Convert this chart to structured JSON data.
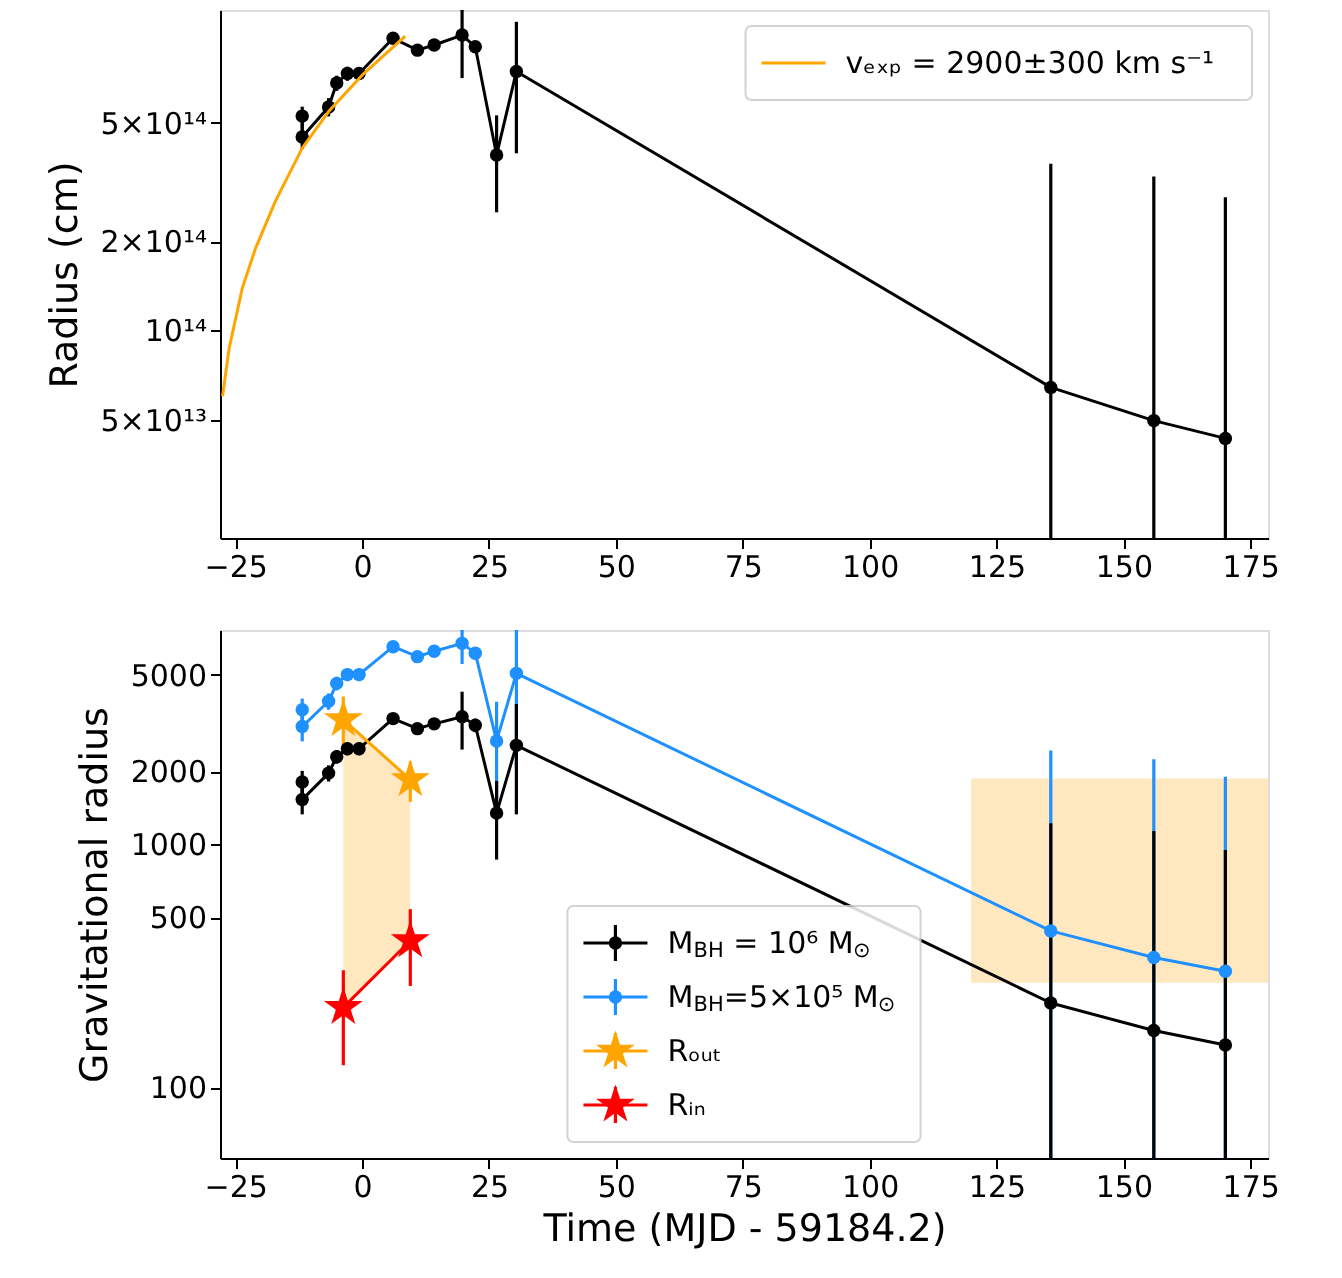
{
  "chart_data": [
    {
      "type": "line",
      "ylabel": "Radius (cm)",
      "xlim": [
        -28,
        178.5
      ],
      "ylim": [
        20000000000000.0,
        1200000000000000.0
      ],
      "log": true,
      "legend": "top right",
      "xticks": [
        -25,
        0,
        25,
        50,
        75,
        100,
        125,
        150,
        175
      ],
      "yticks": [
        {
          "value": 50000000000000.0,
          "label": "5×10¹³"
        },
        {
          "value": 100000000000000.0,
          "label": "10¹⁴"
        },
        {
          "value": 200000000000000.0,
          "label": "2×10¹⁴"
        },
        {
          "value": 500000000000000.0,
          "label": "5×10¹⁴"
        }
      ],
      "series": [
        {
          "type": "line",
          "color": "#000000",
          "marker": "circle",
          "x": [
            -11.8,
            -11.8,
            -6.6,
            -5.0,
            -2.9,
            -0.6,
            6.1,
            10.9,
            14.2,
            19.7,
            22.3,
            26.5,
            30.4,
            135.7,
            156,
            170.1
          ],
          "values": [
            527000000000000.0,
            448000000000000.0,
            566000000000000.0,
            681000000000000.0,
            733000000000000.0,
            733000000000000.0,
            964000000000000.0,
            879000000000000.0,
            915000000000000.0,
            988000000000000.0,
            902000000000000.0,
            390000000000000.0,
            745000000000000.0,
            64300000000000.0,
            49700000000000.0,
            43300000000000.0
          ],
          "errors": [
            40000000000000.0,
            40000000000000.0,
            40000000000000.0,
            40000000000000.0,
            40000000000000.0,
            30000000000000.0,
            30000000000000.0,
            30000000000000.0,
            30000000000000.0,
            [
              708000000000000.0,
              1200000000000000.0
            ],
            30000000000000.0,
            140000000000000.0,
            350000000000000.0,
            [
              20000000000000.0,
              364000000000000.0
            ],
            [
              20000000000000.0,
              330000000000000.0
            ],
            [
              20000000000000.0,
              281000000000000.0
            ]
          ]
        },
        {
          "type": "line",
          "name": "vₑₓₚ = 2900±300 km s⁻¹",
          "color": "#ffa500",
          "marker": "none",
          "x": [
            -27.5,
            -26.2,
            -23.6,
            -21.0,
            -17.1,
            -11.8,
            -6.6,
            0,
            8.5
          ],
          "values": [
            60000000000000.0,
            87000000000000.0,
            139000000000000.0,
            189000000000000.0,
            272000000000000.0,
            411000000000000.0,
            546000000000000.0,
            724000000000000.0,
            980000000000000.0
          ]
        }
      ]
    },
    {
      "type": "line",
      "xlabel": "Time (MJD - 59184.2)",
      "ylabel": "Gravitational radius",
      "xlim": [
        -28,
        178.5
      ],
      "ylim": [
        51,
        7650
      ],
      "log": true,
      "legend": "bottom",
      "xticks": [
        -25,
        0,
        25,
        50,
        75,
        100,
        125,
        150,
        175
      ],
      "yticks": [
        100,
        500,
        1000,
        2000,
        5000
      ],
      "series": [
        {
          "type": "line",
          "color": "#ffa500",
          "marker": "none",
          "x": [
            120,
            178.5
          ],
          "values": [
            null,
            null
          ],
          "lower": [
            269,
            269
          ],
          "upper": [
            1870,
            1870
          ]
        },
        {
          "type": "line",
          "name": "M$_{BH}$ = 10⁶ M$_{⊙}$",
          "color": "#000000",
          "marker": "circle",
          "x": [
            -11.8,
            -11.8,
            -6.6,
            -5.0,
            -2.9,
            -0.6,
            6.1,
            10.9,
            14.2,
            19.7,
            22.3,
            26.5,
            30.4,
            135.7,
            156,
            170.1
          ],
          "values": [
            1810,
            1530,
            1967,
            2300,
            2480,
            2480,
            3300,
            3000,
            3140,
            3360,
            3100,
            1346,
            2560,
            222,
            171,
            149
          ],
          "errors": [
            200,
            200,
            150,
            150,
            150,
            150,
            150,
            150,
            150,
            900,
            200,
            480,
            1230,
            [
              51,
              1222
            ],
            [
              51,
              1135
            ],
            [
              51,
              949
            ]
          ]
        },
        {
          "type": "line",
          "name": "M$_{BH}$=5×10⁵ M$_{⊙}$",
          "color": "#1e90ff",
          "marker": "circle",
          "x": [
            -11.8,
            -11.8,
            -6.6,
            -5.0,
            -2.9,
            -0.6,
            6.1,
            10.9,
            14.2,
            19.7,
            22.3,
            26.5,
            30.4,
            135.7,
            156,
            170.1
          ],
          "values": [
            3590,
            3060,
            3890,
            4610,
            5010,
            5010,
            6530,
            5940,
            6250,
            6740,
            6140,
            2670,
            5070,
            440,
            342,
            300
          ],
          "errors": [
            400,
            400,
            300,
            300,
            300,
            300,
            300,
            300,
            300,
            [
              5540,
              7650
            ],
            300,
            1200,
            [
              2070,
              7650
            ],
            [
              51,
              2440
            ],
            [
              51,
              2242
            ],
            [
              51,
              1900
            ]
          ]
        },
        {
          "type": "line",
          "name": "Rₒᵤₜ",
          "color": "#ffa500",
          "marker": "star",
          "x": [
            -3.7,
            9.5
          ],
          "values": [
            3270,
            1848
          ],
          "errors": [
            800,
            350
          ],
          "lower": [
            213,
            401
          ],
          "upper": [
            3270,
            1848
          ]
        },
        {
          "type": "line",
          "name": "Rᵢₙ",
          "color": "#ff0000",
          "marker": "star",
          "x": [
            -3.7,
            9.5
          ],
          "values": [
            213,
            401
          ],
          "errors": [
            90,
            140
          ]
        }
      ]
    }
  ]
}
